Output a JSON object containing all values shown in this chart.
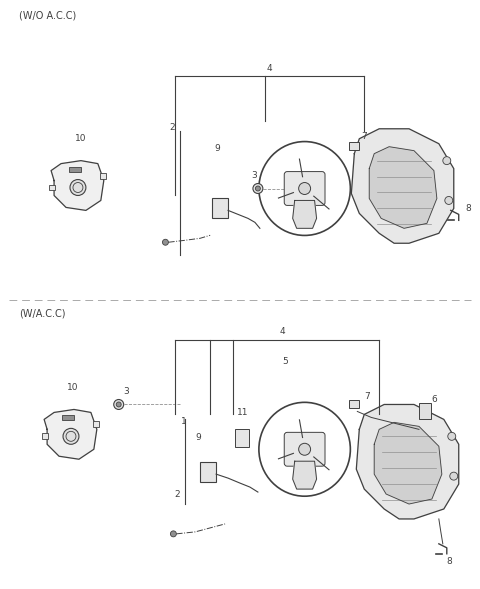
{
  "background_color": "#ffffff",
  "section1_label": "(W/O A.C.C)",
  "section2_label": "(W/A.C.C)",
  "line_color": "#404040",
  "light_gray": "#c8c8c8",
  "mid_gray": "#909090",
  "dark_gray": "#505050"
}
